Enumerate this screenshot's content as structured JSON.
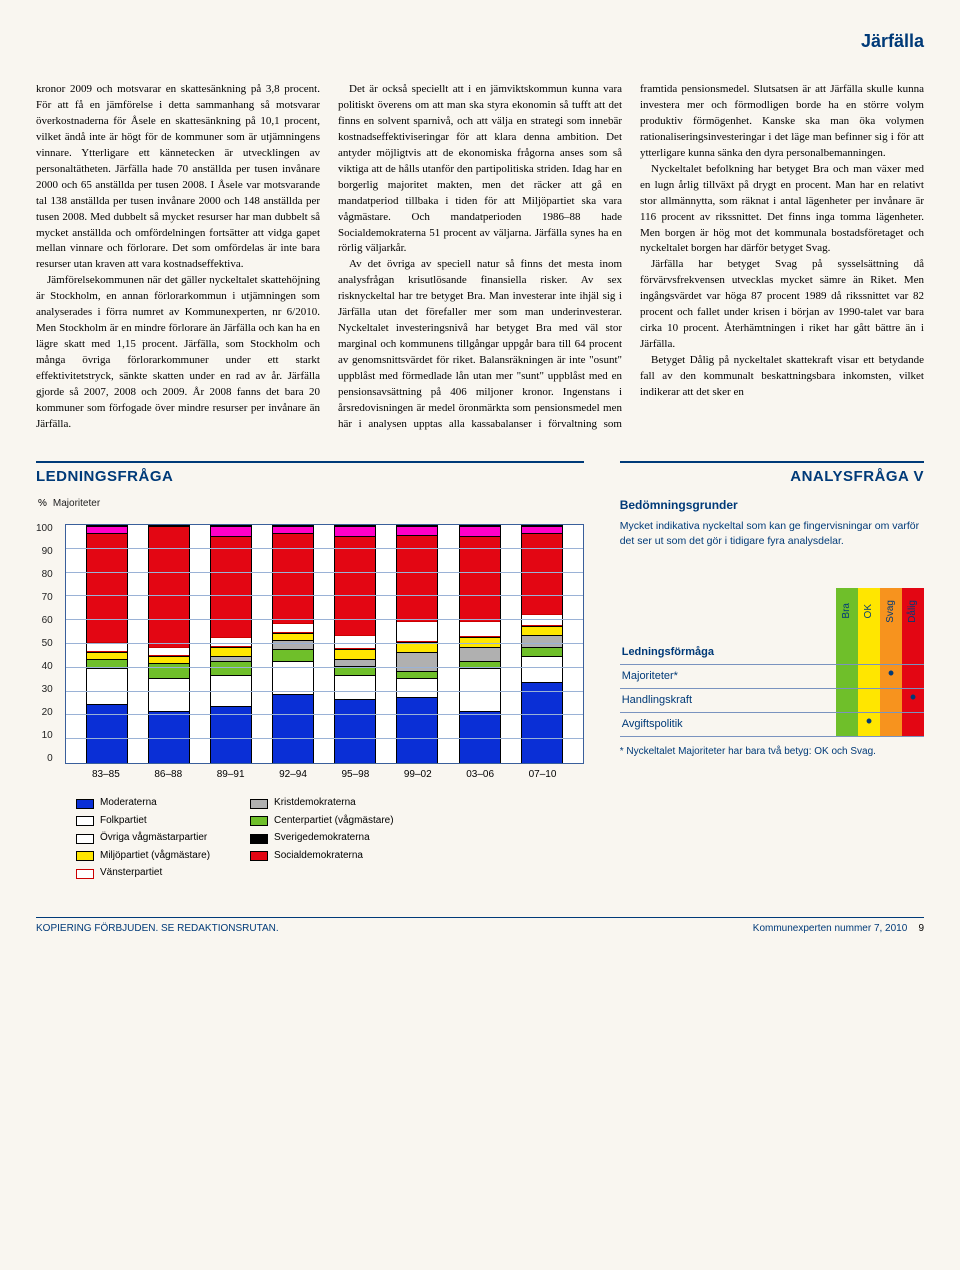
{
  "header": {
    "municipality": "Järfälla"
  },
  "article": {
    "p1": "kronor 2009 och motsvarar en skattesänkning på 3,8 procent. För att få en jämförelse i detta sammanhang så motsvarar överkostnaderna för Åsele en skattesänkning på 10,1 procent, vilket ändå inte är högt för de kommuner som är utjämningens vinnare. Ytterligare ett kännetecken är utvecklingen av personaltätheten. Järfälla hade 70 anställda per tusen invånare 2000 och 65 anställda per tusen 2008. I Åsele var motsvarande tal 138 anställda per tusen invånare 2000 och 148 anställda per tusen 2008. Med dubbelt så mycket resurser har man dubbelt så mycket anställda och omfördelningen fortsätter att vidga gapet mellan vinnare och förlorare. Det som omfördelas är inte bara resurser utan kraven att vara kostnadseffektiva.",
    "p2": "Jämförelsekommunen när det gäller nyckeltalet skattehöjning är Stockholm, en annan förlorarkommun i utjämningen som analyserades i förra numret av Kommunexperten, nr 6/2010. Men Stockholm är en mindre förlorare än Järfälla och kan ha en lägre skatt med 1,15 procent. Järfälla, som Stockholm och många övriga förlorarkommuner under ett starkt effektivitetstryck, sänkte skatten under en rad av år. Järfälla gjorde så 2007, 2008 och 2009. År 2008 fanns det bara 20 kommuner som förfogade över mindre resurser per invånare än Järfälla.",
    "p3": "Det är också speciellt att i en jämviktskommun kunna vara politiskt överens om att man ska styra ekonomin så tufft att det finns en solvent sparnivå, och att välja en strategi som innebär kostnadseffektiviseringar för att klara denna ambition. Det antyder möjligtvis att de ekonomiska frågorna anses som så viktiga att de hålls utanför den partipolitiska striden. Idag har en borgerlig majoritet makten, men det räcker att gå en mandatperiod tillbaka i tiden för att Miljöpartiet ska vara vågmästare. Och mandatperioden 1986–88 hade Socialdemokraterna 51 procent av väljarna. Järfälla synes ha en rörlig väljarkår.",
    "p4": "Av det övriga av speciell natur så finns det mesta inom analysfrågan krisutlösande finansiella risker. Av sex risknyckeltal har tre betyget Bra. Man investerar inte ihjäl sig i Järfälla utan det förefaller mer som man underinvesterar. Nyckeltalet investeringsnivå har betyget Bra med väl stor marginal och kommunens tillgångar uppgår bara till 64 procent av genomsnittsvärdet för riket. Balansräkningen är inte \"osunt\" uppblåst med förmedlade lån utan mer \"sunt\" uppblåst med en pensionsavsättning på 406 miljoner kronor. Ingenstans i årsredovisningen är medel öronmärkta som pensionsmedel men här i analysen upptas alla kassabalanser i förvaltning som framtida pensionsmedel. Slutsatsen är att Järfälla skulle kunna investera mer och förmodligen borde ha en större volym produktiv förmögenhet. Kanske ska man öka volymen rationaliseringsinvesteringar i det läge man befinner sig i för att ytterligare kunna sänka den dyra personalbemanningen.",
    "p5": "Nyckeltalet befolkning har betyget Bra och man växer med en lugn årlig tillväxt på drygt en procent. Man har en relativt stor allmännytta, som räknat i antal lägenheter per invånare är 116 procent av rikssnittet. Det finns inga tomma lägenheter. Men borgen är hög mot det kommunala bostadsföretaget och nyckeltalet borgen har därför betyget Svag.",
    "p6": "Järfälla har betyget Svag på sysselsättning då förvärvsfrekvensen utvecklas mycket sämre än Riket. Men ingångsvärdet var höga 87 procent 1989 då rikssnittet var 82 procent och fallet under krisen i början av 1990-talet var bara cirka 10 procent. Återhämtningen i riket har gått bättre än i Järfälla.",
    "p7": "Betyget Dålig på nyckeltalet skattekraft visar ett betydande fall av den kommunalt beskattningsbara inkomsten, vilket indikerar att det sker en"
  },
  "leftSection": {
    "heading": "LEDNINGSFRÅGA",
    "yaxis_title": "Majoriteter",
    "yaxis_unit": "%",
    "ylim": [
      0,
      100
    ],
    "ytick_step": 10,
    "grid_color": "#9ab2d6",
    "border_color": "#3a5f9b",
    "background": "#ffffff",
    "periods": [
      "83–85",
      "86–88",
      "89–91",
      "92–94",
      "95–98",
      "99–02",
      "03–06",
      "07–10"
    ],
    "parties": {
      "moderaterna": {
        "label": "Moderaterna",
        "color": "#0a2fd6",
        "border": "#000"
      },
      "folkpartiet": {
        "label": "Folkpartiet",
        "color": "#ffffff",
        "border": "#000"
      },
      "ovriga": {
        "label": "Övriga vågmästarpartier",
        "color": "#ffffff",
        "border": "#000"
      },
      "miljopartiet": {
        "label": "Miljöpartiet (vågmästare)",
        "color": "#ffe600",
        "border": "#000"
      },
      "vansterpartiet": {
        "label": "Vänsterpartiet",
        "color": "#ffffff",
        "border": "#cc0000"
      },
      "kristdemokraterna": {
        "label": "Kristdemokraterna",
        "color": "#b0b0b0",
        "border": "#000"
      },
      "centerpartiet": {
        "label": "Centerpartiet (vågmästare)",
        "color": "#6fbf2a",
        "border": "#000"
      },
      "sverigedemokraterna": {
        "label": "Sverigedemokraterna",
        "color": "#000000",
        "border": "#000"
      },
      "socialdemokraterna": {
        "label": "Socialdemokraterna",
        "color": "#e30613",
        "border": "#000"
      }
    },
    "stacks": [
      [
        {
          "k": "moderaterna",
          "v": 25
        },
        {
          "k": "folkpartiet",
          "v": 15
        },
        {
          "k": "centerpartiet",
          "v": 4
        },
        {
          "k": "miljopartiet",
          "v": 3
        },
        {
          "k": "vansterpartiet",
          "v": 4
        },
        {
          "k": "socialdemokraterna",
          "v": 46
        },
        {
          "k": "extra_mp_top",
          "v": 3
        }
      ],
      [
        {
          "k": "moderaterna",
          "v": 22
        },
        {
          "k": "folkpartiet",
          "v": 14
        },
        {
          "k": "centerpartiet",
          "v": 6
        },
        {
          "k": "miljopartiet",
          "v": 3
        },
        {
          "k": "vansterpartiet",
          "v": 4
        },
        {
          "k": "socialdemokraterna",
          "v": 51
        }
      ],
      [
        {
          "k": "moderaterna",
          "v": 24
        },
        {
          "k": "folkpartiet",
          "v": 13
        },
        {
          "k": "centerpartiet",
          "v": 6
        },
        {
          "k": "kristdemokraterna",
          "v": 2
        },
        {
          "k": "miljopartiet",
          "v": 4
        },
        {
          "k": "vansterpartiet",
          "v": 4
        },
        {
          "k": "socialdemokraterna",
          "v": 43
        },
        {
          "k": "extra_mp_top",
          "v": 4
        }
      ],
      [
        {
          "k": "moderaterna",
          "v": 29
        },
        {
          "k": "folkpartiet",
          "v": 14
        },
        {
          "k": "centerpartiet",
          "v": 5
        },
        {
          "k": "kristdemokraterna",
          "v": 4
        },
        {
          "k": "miljopartiet",
          "v": 3
        },
        {
          "k": "vansterpartiet",
          "v": 4
        },
        {
          "k": "socialdemokraterna",
          "v": 38
        },
        {
          "k": "extra_mp_top",
          "v": 3
        }
      ],
      [
        {
          "k": "moderaterna",
          "v": 27
        },
        {
          "k": "folkpartiet",
          "v": 10
        },
        {
          "k": "centerpartiet",
          "v": 4
        },
        {
          "k": "kristdemokraterna",
          "v": 3
        },
        {
          "k": "miljopartiet",
          "v": 4
        },
        {
          "k": "vansterpartiet",
          "v": 6
        },
        {
          "k": "socialdemokraterna",
          "v": 42
        },
        {
          "k": "extra_mp_top",
          "v": 4
        }
      ],
      [
        {
          "k": "moderaterna",
          "v": 28
        },
        {
          "k": "folkpartiet",
          "v": 8
        },
        {
          "k": "centerpartiet",
          "v": 3
        },
        {
          "k": "kristdemokraterna",
          "v": 8
        },
        {
          "k": "miljopartiet",
          "v": 4
        },
        {
          "k": "vansterpartiet",
          "v": 9
        },
        {
          "k": "socialdemokraterna",
          "v": 36
        },
        {
          "k": "extra_mp_top",
          "v": 4
        }
      ],
      [
        {
          "k": "moderaterna",
          "v": 22
        },
        {
          "k": "folkpartiet",
          "v": 18
        },
        {
          "k": "centerpartiet",
          "v": 3
        },
        {
          "k": "kristdemokraterna",
          "v": 6
        },
        {
          "k": "miljopartiet",
          "v": 4
        },
        {
          "k": "vansterpartiet",
          "v": 7
        },
        {
          "k": "socialdemokraterna",
          "v": 36
        },
        {
          "k": "extra_mp_top",
          "v": 4
        }
      ],
      [
        {
          "k": "moderaterna",
          "v": 34
        },
        {
          "k": "folkpartiet",
          "v": 11
        },
        {
          "k": "centerpartiet",
          "v": 4
        },
        {
          "k": "kristdemokraterna",
          "v": 5
        },
        {
          "k": "miljopartiet",
          "v": 4
        },
        {
          "k": "vansterpartiet",
          "v": 5
        },
        {
          "k": "socialdemokraterna",
          "v": 34
        },
        {
          "k": "extra_mp_top",
          "v": 3
        }
      ]
    ]
  },
  "rightSection": {
    "heading": "ANALYSFRÅGA V",
    "assessment_title": "Bedömningsgrunder",
    "assessment_text": "Mycket indikativa nyckeltal som kan ge fingervisningar om varför det ser ut som det gör i tidigare fyra analysdelar.",
    "rating_cols": [
      {
        "label": "Bra",
        "bg": "#6fbf2a"
      },
      {
        "label": "OK",
        "bg": "#ffe600"
      },
      {
        "label": "Svag",
        "bg": "#f7931e"
      },
      {
        "label": "Dålig",
        "bg": "#e30613"
      }
    ],
    "rows": [
      {
        "name": "Ledningsförmåga",
        "marks": [
          "",
          "",
          "",
          ""
        ]
      },
      {
        "name": "Majoriteter*",
        "marks": [
          "",
          "",
          "•",
          ""
        ]
      },
      {
        "name": "Handlingskraft",
        "marks": [
          "",
          "",
          "",
          "•"
        ]
      },
      {
        "name": "Avgiftspolitik",
        "marks": [
          "",
          "•",
          "",
          ""
        ]
      }
    ],
    "footnote": "* Nyckeltalet Majoriteter har bara två betyg: OK och Svag."
  },
  "footer": {
    "left": "KOPIERING FÖRBJUDEN. SE REDAKTIONSRUTAN.",
    "right_pub": "Kommunexperten nummer 7, 2010",
    "right_page": "9"
  },
  "colors": {
    "brand": "#003a78",
    "page_bg": "#f9f6f0"
  }
}
